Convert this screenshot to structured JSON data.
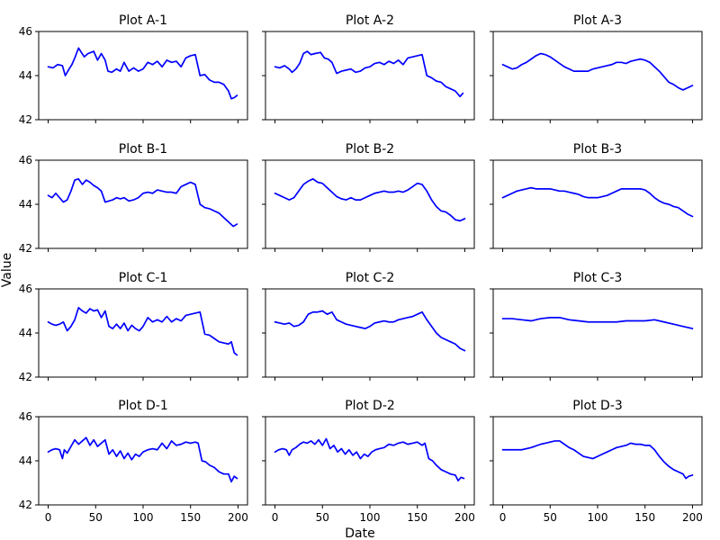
{
  "figure": {
    "xlabel": "Date",
    "ylabel": "Value",
    "x_ticks": [
      0,
      50,
      100,
      150,
      200
    ],
    "y_ticks": [
      42,
      44,
      46
    ],
    "line_color": "#0000ff"
  },
  "chart_data": [
    {
      "type": "line",
      "title": "Plot A-1",
      "xlim": [
        -10,
        210
      ],
      "ylim": [
        42,
        46
      ],
      "row": 0,
      "col": 0,
      "x": [
        0,
        5,
        10,
        15,
        18,
        22,
        25,
        28,
        32,
        35,
        38,
        42,
        48,
        52,
        56,
        60,
        63,
        67,
        72,
        76,
        80,
        85,
        90,
        95,
        100,
        105,
        110,
        115,
        120,
        125,
        130,
        135,
        140,
        145,
        150,
        155,
        160,
        165,
        170,
        175,
        180,
        185,
        190,
        193,
        196,
        199
      ],
      "y": [
        44.4,
        44.35,
        44.5,
        44.45,
        44.0,
        44.3,
        44.5,
        44.8,
        45.25,
        45.05,
        44.85,
        45.0,
        45.1,
        44.7,
        45.0,
        44.7,
        44.2,
        44.15,
        44.3,
        44.2,
        44.6,
        44.2,
        44.35,
        44.2,
        44.3,
        44.6,
        44.5,
        44.65,
        44.4,
        44.7,
        44.6,
        44.65,
        44.4,
        44.8,
        44.9,
        44.95,
        44.0,
        44.05,
        43.8,
        43.7,
        43.7,
        43.6,
        43.3,
        42.95,
        43.0,
        43.1
      ]
    },
    {
      "type": "line",
      "title": "Plot A-2",
      "xlim": [
        -10,
        210
      ],
      "ylim": [
        42,
        46
      ],
      "row": 0,
      "col": 1,
      "x": [
        0,
        5,
        10,
        15,
        18,
        22,
        26,
        30,
        34,
        38,
        42,
        48,
        52,
        56,
        60,
        65,
        70,
        75,
        80,
        85,
        90,
        95,
        100,
        105,
        110,
        115,
        120,
        125,
        130,
        135,
        140,
        145,
        150,
        155,
        160,
        165,
        170,
        175,
        180,
        185,
        190,
        195,
        198
      ],
      "y": [
        44.4,
        44.35,
        44.45,
        44.3,
        44.15,
        44.3,
        44.55,
        45.0,
        45.1,
        44.95,
        45.0,
        45.05,
        44.8,
        44.75,
        44.6,
        44.1,
        44.2,
        44.25,
        44.3,
        44.15,
        44.2,
        44.35,
        44.4,
        44.55,
        44.6,
        44.5,
        44.65,
        44.55,
        44.7,
        44.5,
        44.8,
        44.85,
        44.9,
        44.95,
        44.0,
        43.9,
        43.75,
        43.7,
        43.5,
        43.4,
        43.3,
        43.05,
        43.2
      ]
    },
    {
      "type": "line",
      "title": "Plot A-3",
      "xlim": [
        -10,
        210
      ],
      "ylim": [
        42,
        46
      ],
      "row": 0,
      "col": 2,
      "x": [
        0,
        5,
        10,
        15,
        20,
        25,
        30,
        35,
        40,
        45,
        50,
        55,
        60,
        65,
        70,
        75,
        80,
        85,
        90,
        95,
        100,
        105,
        110,
        115,
        120,
        125,
        130,
        135,
        140,
        145,
        150,
        155,
        160,
        165,
        170,
        175,
        180,
        185,
        190,
        195,
        200
      ],
      "y": [
        44.5,
        44.4,
        44.3,
        44.35,
        44.5,
        44.6,
        44.75,
        44.9,
        45.0,
        44.95,
        44.85,
        44.7,
        44.55,
        44.4,
        44.3,
        44.2,
        44.2,
        44.2,
        44.2,
        44.3,
        44.35,
        44.4,
        44.45,
        44.5,
        44.6,
        44.6,
        44.55,
        44.65,
        44.7,
        44.75,
        44.7,
        44.6,
        44.4,
        44.2,
        43.95,
        43.7,
        43.6,
        43.45,
        43.35,
        43.45,
        43.55
      ]
    },
    {
      "type": "line",
      "title": "Plot B-1",
      "xlim": [
        -10,
        210
      ],
      "ylim": [
        42,
        46
      ],
      "row": 1,
      "col": 0,
      "x": [
        0,
        4,
        8,
        12,
        16,
        20,
        24,
        28,
        32,
        36,
        40,
        44,
        48,
        52,
        56,
        60,
        64,
        68,
        72,
        76,
        80,
        85,
        90,
        95,
        100,
        105,
        110,
        115,
        120,
        125,
        130,
        135,
        140,
        145,
        150,
        155,
        160,
        165,
        170,
        175,
        180,
        185,
        190,
        195,
        199
      ],
      "y": [
        44.4,
        44.3,
        44.5,
        44.3,
        44.1,
        44.2,
        44.6,
        45.1,
        45.15,
        44.9,
        45.1,
        45.0,
        44.85,
        44.75,
        44.6,
        44.1,
        44.15,
        44.2,
        44.3,
        44.25,
        44.3,
        44.15,
        44.2,
        44.3,
        44.5,
        44.55,
        44.5,
        44.65,
        44.6,
        44.55,
        44.55,
        44.5,
        44.8,
        44.9,
        45.0,
        44.9,
        44.0,
        43.85,
        43.8,
        43.7,
        43.6,
        43.4,
        43.2,
        43.0,
        43.1
      ]
    },
    {
      "type": "line",
      "title": "Plot B-2",
      "xlim": [
        -10,
        210
      ],
      "ylim": [
        42,
        46
      ],
      "row": 1,
      "col": 1,
      "x": [
        0,
        5,
        10,
        15,
        20,
        25,
        30,
        35,
        40,
        45,
        50,
        55,
        60,
        65,
        70,
        75,
        80,
        85,
        90,
        95,
        100,
        105,
        110,
        115,
        120,
        125,
        130,
        135,
        140,
        145,
        150,
        155,
        160,
        165,
        170,
        175,
        180,
        185,
        190,
        195,
        200
      ],
      "y": [
        44.5,
        44.4,
        44.3,
        44.2,
        44.3,
        44.6,
        44.9,
        45.05,
        45.15,
        45.0,
        44.95,
        44.75,
        44.55,
        44.35,
        44.25,
        44.2,
        44.3,
        44.2,
        44.2,
        44.3,
        44.4,
        44.5,
        44.55,
        44.6,
        44.55,
        44.55,
        44.6,
        44.55,
        44.65,
        44.8,
        44.95,
        44.9,
        44.6,
        44.2,
        43.9,
        43.7,
        43.65,
        43.5,
        43.3,
        43.25,
        43.35
      ]
    },
    {
      "type": "line",
      "title": "Plot B-3",
      "xlim": [
        -10,
        210
      ],
      "ylim": [
        42,
        46
      ],
      "row": 1,
      "col": 2,
      "x": [
        0,
        5,
        10,
        15,
        20,
        25,
        30,
        35,
        40,
        45,
        50,
        55,
        60,
        65,
        70,
        75,
        80,
        85,
        90,
        95,
        100,
        105,
        110,
        115,
        120,
        125,
        130,
        135,
        140,
        145,
        150,
        155,
        160,
        165,
        170,
        175,
        180,
        185,
        190,
        195,
        200
      ],
      "y": [
        44.3,
        44.4,
        44.5,
        44.6,
        44.65,
        44.7,
        44.75,
        44.7,
        44.7,
        44.7,
        44.7,
        44.65,
        44.6,
        44.6,
        44.55,
        44.5,
        44.45,
        44.35,
        44.3,
        44.3,
        44.3,
        44.35,
        44.4,
        44.5,
        44.6,
        44.7,
        44.7,
        44.7,
        44.7,
        44.7,
        44.65,
        44.5,
        44.3,
        44.15,
        44.05,
        44.0,
        43.9,
        43.85,
        43.7,
        43.55,
        43.45
      ]
    },
    {
      "type": "line",
      "title": "Plot C-1",
      "xlim": [
        -10,
        210
      ],
      "ylim": [
        42,
        46
      ],
      "row": 2,
      "col": 0,
      "x": [
        0,
        4,
        8,
        12,
        16,
        20,
        24,
        28,
        32,
        36,
        40,
        44,
        48,
        52,
        56,
        60,
        64,
        68,
        72,
        76,
        80,
        84,
        88,
        92,
        96,
        100,
        105,
        110,
        115,
        120,
        125,
        130,
        135,
        140,
        145,
        150,
        155,
        160,
        165,
        170,
        175,
        180,
        185,
        190,
        193,
        196,
        199
      ],
      "y": [
        44.5,
        44.4,
        44.35,
        44.4,
        44.5,
        44.1,
        44.3,
        44.6,
        45.15,
        45.0,
        44.9,
        45.1,
        45.0,
        45.05,
        44.7,
        45.0,
        44.3,
        44.2,
        44.4,
        44.2,
        44.45,
        44.1,
        44.35,
        44.2,
        44.1,
        44.3,
        44.7,
        44.5,
        44.6,
        44.5,
        44.75,
        44.5,
        44.65,
        44.55,
        44.8,
        44.85,
        44.9,
        44.95,
        43.95,
        43.9,
        43.75,
        43.6,
        43.55,
        43.5,
        43.6,
        43.1,
        43.0
      ]
    },
    {
      "type": "line",
      "title": "Plot C-2",
      "xlim": [
        -10,
        210
      ],
      "ylim": [
        42,
        46
      ],
      "row": 2,
      "col": 1,
      "x": [
        0,
        5,
        10,
        15,
        20,
        25,
        30,
        35,
        40,
        45,
        50,
        55,
        60,
        65,
        70,
        75,
        80,
        85,
        90,
        95,
        100,
        105,
        110,
        115,
        120,
        125,
        130,
        135,
        140,
        145,
        150,
        155,
        160,
        165,
        170,
        175,
        180,
        185,
        190,
        195,
        200
      ],
      "y": [
        44.5,
        44.45,
        44.4,
        44.45,
        44.3,
        44.35,
        44.5,
        44.85,
        44.95,
        44.95,
        45.0,
        44.85,
        44.95,
        44.6,
        44.5,
        44.4,
        44.35,
        44.3,
        44.25,
        44.2,
        44.3,
        44.45,
        44.5,
        44.55,
        44.5,
        44.5,
        44.6,
        44.65,
        44.7,
        44.75,
        44.85,
        44.95,
        44.6,
        44.3,
        44.0,
        43.8,
        43.7,
        43.6,
        43.5,
        43.3,
        43.2
      ]
    },
    {
      "type": "line",
      "title": "Plot C-3",
      "xlim": [
        -10,
        210
      ],
      "ylim": [
        42,
        46
      ],
      "row": 2,
      "col": 2,
      "x": [
        0,
        10,
        20,
        30,
        40,
        50,
        60,
        70,
        80,
        90,
        100,
        110,
        120,
        130,
        140,
        150,
        160,
        170,
        180,
        190,
        200
      ],
      "y": [
        44.65,
        44.65,
        44.6,
        44.55,
        44.65,
        44.7,
        44.7,
        44.6,
        44.55,
        44.5,
        44.5,
        44.5,
        44.5,
        44.55,
        44.55,
        44.55,
        44.6,
        44.5,
        44.4,
        44.3,
        44.2
      ]
    },
    {
      "type": "line",
      "title": "Plot D-1",
      "xlim": [
        -10,
        210
      ],
      "ylim": [
        42,
        46
      ],
      "row": 3,
      "col": 0,
      "x": [
        0,
        4,
        8,
        12,
        15,
        17,
        20,
        24,
        28,
        32,
        36,
        40,
        44,
        48,
        52,
        56,
        60,
        64,
        68,
        72,
        76,
        80,
        84,
        88,
        92,
        96,
        100,
        105,
        110,
        115,
        120,
        125,
        130,
        135,
        140,
        145,
        150,
        155,
        158,
        162,
        166,
        170,
        175,
        180,
        185,
        190,
        193,
        196,
        199
      ],
      "y": [
        44.4,
        44.5,
        44.55,
        44.5,
        44.1,
        44.5,
        44.35,
        44.65,
        44.95,
        44.75,
        44.9,
        45.05,
        44.7,
        44.95,
        44.65,
        44.8,
        44.95,
        44.3,
        44.5,
        44.2,
        44.45,
        44.1,
        44.35,
        44.05,
        44.3,
        44.2,
        44.4,
        44.5,
        44.55,
        44.5,
        44.8,
        44.55,
        44.9,
        44.7,
        44.75,
        44.85,
        44.8,
        44.85,
        44.8,
        44.0,
        43.95,
        43.8,
        43.7,
        43.5,
        43.4,
        43.4,
        43.05,
        43.3,
        43.2
      ]
    },
    {
      "type": "line",
      "title": "Plot D-2",
      "xlim": [
        -10,
        210
      ],
      "ylim": [
        42,
        46
      ],
      "row": 3,
      "col": 1,
      "x": [
        0,
        4,
        8,
        12,
        15,
        18,
        22,
        26,
        30,
        34,
        38,
        42,
        46,
        50,
        54,
        58,
        62,
        66,
        70,
        74,
        78,
        82,
        86,
        90,
        94,
        98,
        102,
        106,
        110,
        115,
        120,
        125,
        130,
        135,
        140,
        145,
        150,
        155,
        158,
        162,
        166,
        170,
        175,
        180,
        185,
        190,
        193,
        196,
        199
      ],
      "y": [
        44.4,
        44.5,
        44.55,
        44.5,
        44.25,
        44.5,
        44.6,
        44.75,
        44.85,
        44.8,
        44.9,
        44.75,
        44.95,
        44.7,
        45.0,
        44.55,
        44.7,
        44.4,
        44.55,
        44.3,
        44.5,
        44.25,
        44.4,
        44.1,
        44.3,
        44.2,
        44.4,
        44.5,
        44.55,
        44.6,
        44.75,
        44.7,
        44.8,
        44.85,
        44.75,
        44.8,
        44.85,
        44.7,
        44.8,
        44.1,
        44.0,
        43.8,
        43.6,
        43.5,
        43.4,
        43.35,
        43.1,
        43.25,
        43.2
      ]
    },
    {
      "type": "line",
      "title": "Plot D-3",
      "xlim": [
        -10,
        210
      ],
      "ylim": [
        42,
        46
      ],
      "row": 3,
      "col": 2,
      "x": [
        0,
        10,
        20,
        30,
        40,
        45,
        50,
        55,
        60,
        65,
        70,
        75,
        80,
        85,
        90,
        95,
        100,
        105,
        110,
        115,
        120,
        125,
        130,
        135,
        140,
        145,
        150,
        155,
        160,
        165,
        170,
        175,
        180,
        185,
        190,
        193,
        196,
        200
      ],
      "y": [
        44.5,
        44.5,
        44.5,
        44.6,
        44.75,
        44.8,
        44.85,
        44.9,
        44.9,
        44.75,
        44.6,
        44.5,
        44.35,
        44.2,
        44.15,
        44.1,
        44.2,
        44.3,
        44.4,
        44.5,
        44.6,
        44.65,
        44.7,
        44.8,
        44.75,
        44.75,
        44.7,
        44.7,
        44.5,
        44.2,
        43.95,
        43.75,
        43.6,
        43.5,
        43.4,
        43.2,
        43.3,
        43.35
      ]
    }
  ]
}
